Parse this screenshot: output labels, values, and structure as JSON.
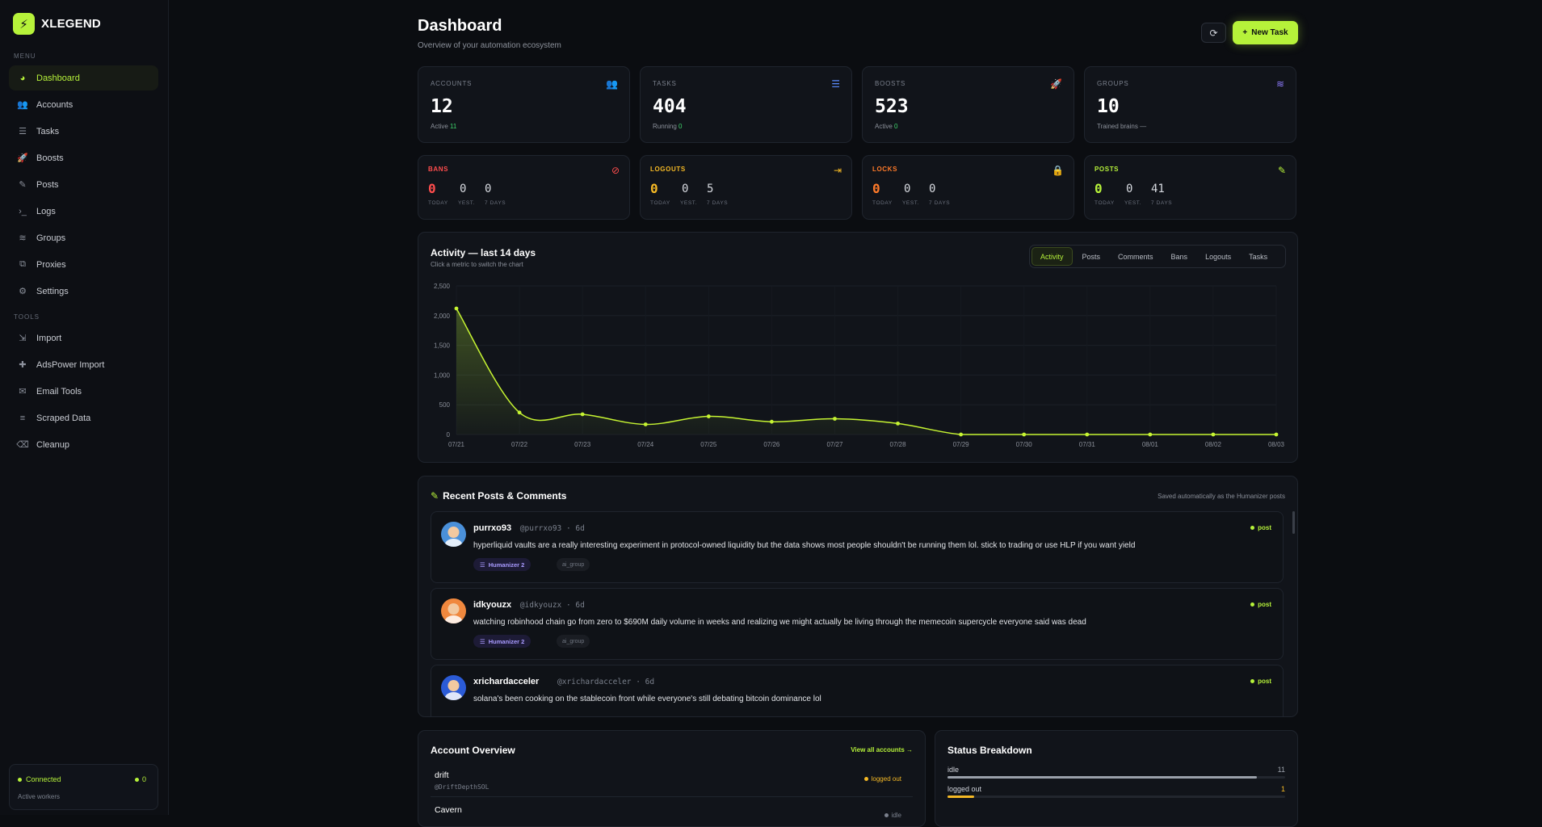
{
  "app": {
    "name": "XLEGEND",
    "logo_glyph": "⚡"
  },
  "sidebar": {
    "menu_label": "MENU",
    "tools_label": "TOOLS",
    "menu_items": [
      {
        "label": "Dashboard",
        "icon": "gauge-icon",
        "glyph": "◕",
        "active": true
      },
      {
        "label": "Accounts",
        "icon": "users-icon",
        "glyph": "👥"
      },
      {
        "label": "Tasks",
        "icon": "list-check-icon",
        "glyph": "☰"
      },
      {
        "label": "Boosts",
        "icon": "rocket-icon",
        "glyph": "🚀"
      },
      {
        "label": "Posts",
        "icon": "feather-icon",
        "glyph": "✎"
      },
      {
        "label": "Logs",
        "icon": "terminal-icon",
        "glyph": "›_"
      },
      {
        "label": "Groups",
        "icon": "layers-icon",
        "glyph": "≋"
      },
      {
        "label": "Proxies",
        "icon": "network-icon",
        "glyph": "⧉"
      },
      {
        "label": "Settings",
        "icon": "gear-icon",
        "glyph": "⚙"
      }
    ],
    "tool_items": [
      {
        "label": "Import",
        "icon": "import-icon",
        "glyph": "⇲"
      },
      {
        "label": "AdsPower Import",
        "icon": "puzzle-icon",
        "glyph": "✚"
      },
      {
        "label": "Email Tools",
        "icon": "envelope-icon",
        "glyph": "✉"
      },
      {
        "label": "Scraped Data",
        "icon": "database-icon",
        "glyph": "≡"
      },
      {
        "label": "Cleanup",
        "icon": "broom-icon",
        "glyph": "⌫"
      }
    ],
    "status": {
      "connected": "Connected",
      "count": "0",
      "sub": "Active workers"
    }
  },
  "header": {
    "title": "Dashboard",
    "subtitle": "Overview of your automation ecosystem",
    "refresh_glyph": "⟳",
    "new_task": "New Task",
    "new_task_glyph": "+"
  },
  "stats": [
    {
      "label": "ACCOUNTS",
      "value": "12",
      "sub_prefix": "Active ",
      "sub_value": "11",
      "icon": "users-icon",
      "glyph": "👥",
      "color": "#3ed36b"
    },
    {
      "label": "TASKS",
      "value": "404",
      "sub_prefix": "Running ",
      "sub_value": "0",
      "icon": "list-check-icon",
      "glyph": "☰",
      "color": "#5b8cff"
    },
    {
      "label": "BOOSTS",
      "value": "523",
      "sub_prefix": "Active ",
      "sub_value": "0",
      "icon": "rocket-icon",
      "glyph": "🚀",
      "color": "#ff7a29"
    },
    {
      "label": "GROUPS",
      "value": "10",
      "sub_prefix": "Trained brains ",
      "sub_value": "—",
      "icon": "layers-icon",
      "glyph": "≋",
      "color": "#8f7cff"
    }
  ],
  "metrics": [
    {
      "label": "BANS",
      "color": "#ff4d4d",
      "icon": "ban-icon",
      "glyph": "⊘",
      "today": "0",
      "yest": "0",
      "days7": "0"
    },
    {
      "label": "LOGOUTS",
      "color": "#f5b925",
      "icon": "logout-icon",
      "glyph": "⇥",
      "today": "0",
      "yest": "0",
      "days7": "5"
    },
    {
      "label": "LOCKS",
      "color": "#ff7a29",
      "icon": "lock-icon",
      "glyph": "🔒",
      "today": "0",
      "yest": "0",
      "days7": "0"
    },
    {
      "label": "POSTS",
      "color": "#b6f23a",
      "icon": "feather-icon",
      "glyph": "✎",
      "today": "0",
      "yest": "0",
      "days7": "41"
    }
  ],
  "metric_col_labels": {
    "today": "TODAY",
    "yest": "YEST.",
    "days7": "7 DAYS"
  },
  "activity": {
    "title": "Activity — last 14 days",
    "subtitle": "Click a metric to switch the chart",
    "tabs": [
      "Activity",
      "Posts",
      "Comments",
      "Bans",
      "Logouts",
      "Tasks"
    ],
    "active_tab": "Activity"
  },
  "chart_data": {
    "type": "area",
    "x": [
      "07/21",
      "07/22",
      "07/23",
      "07/24",
      "07/25",
      "07/26",
      "07/27",
      "07/28",
      "07/29",
      "07/30",
      "07/31",
      "08/01",
      "08/02",
      "08/03"
    ],
    "values": [
      2120,
      370,
      340,
      170,
      305,
      215,
      265,
      185,
      0,
      0,
      0,
      0,
      0,
      0
    ],
    "y_ticks": [
      "0",
      "500",
      "1,000",
      "1,500",
      "2,000",
      "2,500"
    ],
    "ylim": [
      0,
      2500
    ],
    "grid": true,
    "line_color": "#c6f432"
  },
  "recent_posts": {
    "title": "Recent Posts & Comments",
    "title_glyph": "✎",
    "note": "Saved automatically as the Humanizer posts",
    "items": [
      {
        "name": "purrxo93",
        "handle": "@purrxo93 · 6d",
        "type": "post",
        "text": "hyperliquid vaults are a really interesting experiment in protocol-owned liquidity but the data shows most people shouldn't be running them lol. stick to trading or use HLP if you want yield",
        "tag": "Humanizer 2",
        "tag2": "ai_group",
        "avatar_color": "#4a90d9"
      },
      {
        "name": "idkyouzx",
        "handle": "@idkyouzx · 6d",
        "type": "post",
        "text": "watching robinhood chain go from zero to $690M daily volume in weeks and realizing we might actually be living through the memecoin supercycle everyone said was dead",
        "tag": "Humanizer 2",
        "tag2": "ai_group",
        "avatar_color": "#f0883e"
      },
      {
        "name": "xrichardacceler",
        "handle": "@xrichardacceler · 6d",
        "type": "post",
        "text": "solana's been cooking on the stablecoin front while everyone's still debating bitcoin dominance lol",
        "tag": "",
        "tag2": "",
        "avatar_color": "#2b5bd7"
      }
    ]
  },
  "account_overview": {
    "title": "Account Overview",
    "link": "View all accounts →",
    "rows": [
      {
        "name": "drift",
        "handle": "@DriftDepthSOL",
        "status": "logged out"
      },
      {
        "name": "Cavern",
        "handle": "",
        "status": "idle"
      }
    ]
  },
  "status_breakdown": {
    "title": "Status Breakdown",
    "rows": [
      {
        "label": "idle",
        "count": "11",
        "fraction": 0.917,
        "color": "#9aa0aa",
        "count_color": "#9aa0aa"
      },
      {
        "label": "logged out",
        "count": "1",
        "fraction": 0.08,
        "color": "#f5b925",
        "count_color": "#f5b925"
      }
    ]
  }
}
